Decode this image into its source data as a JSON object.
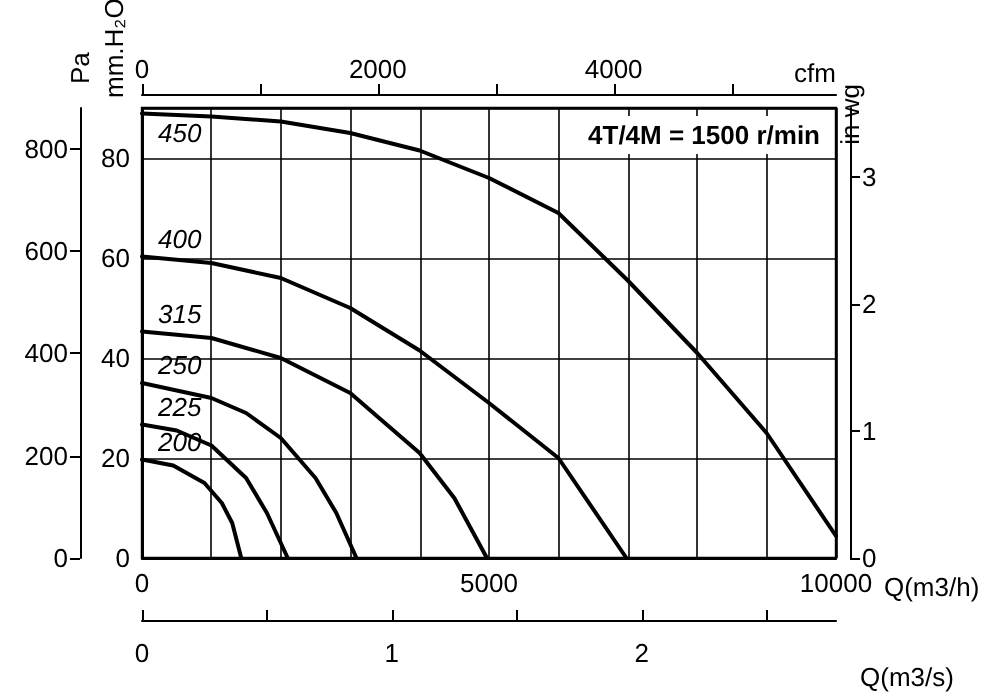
{
  "chart_data": {
    "type": "line",
    "title": "4T/4M = 1500 r/min",
    "annotations": [
      "Q(m3/s)",
      "0",
      "1",
      "2"
    ],
    "xlabel": "Q(m3/h)",
    "ylabel": "mm.H₂O",
    "y2label": "Pa",
    "y3label": "in wg",
    "x2label": "cfm",
    "series": [
      {
        "name": "200",
        "color": "#000000",
        "x": [
          0,
          450,
          900,
          1150,
          1300,
          1430
        ],
        "values": [
          19.7,
          18.5,
          15,
          11,
          7,
          0
        ]
      },
      {
        "name": "225",
        "color": "#000000",
        "x": [
          0,
          500,
          1000,
          1500,
          1800,
          2100
        ],
        "values": [
          26.7,
          25.5,
          22.5,
          16,
          9,
          0
        ]
      },
      {
        "name": "250",
        "color": "#000000",
        "x": [
          0,
          1000,
          1500,
          2000,
          2500,
          2800,
          3090
        ],
        "values": [
          35,
          32,
          29,
          24,
          16,
          9,
          0
        ]
      },
      {
        "name": "315",
        "color": "#000000",
        "x": [
          0,
          1000,
          2000,
          3000,
          4000,
          4500,
          4970
        ],
        "values": [
          45.3,
          44,
          40,
          33,
          21,
          12,
          0
        ]
      },
      {
        "name": "400",
        "color": "#000000",
        "x": [
          0,
          1000,
          2000,
          3000,
          4000,
          5000,
          6000,
          6980
        ],
        "values": [
          60.3,
          59,
          56,
          50,
          41.5,
          31,
          20,
          0
        ]
      },
      {
        "name": "450",
        "color": "#000000",
        "x": [
          0,
          1000,
          2000,
          3000,
          4000,
          5000,
          6000,
          7000,
          8000,
          9000,
          10000
        ],
        "values": [
          88.9,
          88.3,
          87.3,
          85,
          81.5,
          76,
          69,
          55.5,
          41,
          25,
          4.4
        ]
      }
    ],
    "xlim": [
      0,
      10000
    ],
    "xticks": [
      0,
      {
        "value": 1000,
        "label": null
      },
      {
        "value": 2000,
        "label": null
      },
      {
        "value": 3000,
        "label": null
      },
      {
        "value": 4000,
        "label": null
      },
      5000,
      {
        "value": 6000,
        "label": null
      },
      {
        "value": 7000,
        "label": null
      },
      {
        "value": 8000,
        "label": null
      },
      {
        "value": 9000,
        "label": null
      },
      10000
    ],
    "ylim": [
      0,
      90
    ],
    "yticks": [
      0,
      20,
      40,
      60,
      80
    ],
    "y2lim": [
      0,
      880
    ],
    "y2ticks": [
      0,
      200,
      400,
      600,
      800
    ],
    "y3lim": [
      0,
      3.54
    ],
    "y3ticks": [
      0,
      1,
      2,
      3
    ],
    "x2lim": [
      0,
      5886
    ],
    "x2ticks": [
      0,
      {
        "value": 1000,
        "label": null
      },
      2000,
      {
        "value": 3000,
        "label": null
      },
      4000,
      {
        "value": 5000,
        "label": null
      }
    ],
    "grid": true
  }
}
